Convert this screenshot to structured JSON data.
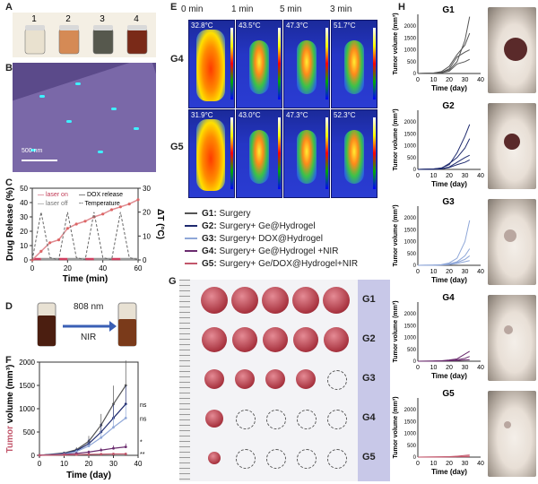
{
  "panels": {
    "A": "A",
    "B": "B",
    "C": "C",
    "D": "D",
    "E": "E",
    "F": "F",
    "G": "G",
    "H": "H"
  },
  "vials": {
    "labels": [
      "1",
      "2",
      "3",
      "4"
    ],
    "colors": [
      "#e9e1cf",
      "#d58a55",
      "#56584d",
      "#7a2a18"
    ]
  },
  "sem": {
    "scalebar": "500 nm"
  },
  "release_chart": {
    "ylabel": "Drug Release (%)",
    "y2label": "ΔT (°C)",
    "xlabel": "Time (min)",
    "legend": [
      "laser on",
      "DOX release",
      "laser off",
      "Temperature"
    ]
  },
  "nir": {
    "wavelength": "808 nm",
    "label": "NIR"
  },
  "thermal": {
    "times": [
      "0 min",
      "1 min",
      "3 min",
      "5 min"
    ],
    "groups": [
      "G4",
      "G5"
    ],
    "temps": [
      [
        "32.8°C",
        "43.5°C",
        "47.3°C",
        "51.7°C"
      ],
      [
        "31.9°C",
        "43.0°C",
        "47.3°C",
        "52.3°C"
      ]
    ]
  },
  "group_legend": [
    {
      "id": "G1:",
      "desc": " Surgery",
      "color": "#555555"
    },
    {
      "id": "G2:",
      "desc": " Surgery+ Ge@Hydrogel",
      "color": "#1e2a6e"
    },
    {
      "id": "G3:",
      "desc": " Surgery+ DOX@Hydrogel",
      "color": "#8fa7d8"
    },
    {
      "id": "G4:",
      "desc": " Surgery+ Ge@Hydrogel +NIR",
      "color": "#6a2b6e"
    },
    {
      "id": "G5:",
      "desc": " Surgery+ Ge/DOX@Hydrogel+NIR",
      "color": "#c2566b"
    }
  ],
  "tumor_photo": {
    "rows": [
      "G1",
      "G2",
      "G3",
      "G4",
      "G5"
    ],
    "counts": [
      5,
      5,
      4,
      1,
      1
    ]
  },
  "tumor_chart": {
    "ylabel_prefix": "Tumor",
    "ylabel_rest": " volume (mm³)",
    "xlabel": "Time (day)",
    "sig": [
      "ns",
      "ns",
      "*",
      "**"
    ]
  },
  "h_charts": {
    "ylabel": "Tumor volume (mm³)",
    "xlabel": "Time (day)",
    "groups": [
      "G1",
      "G2",
      "G3",
      "G4",
      "G5"
    ]
  },
  "chart_data": [
    {
      "type": "line",
      "panel": "C",
      "xlabel": "Time (min)",
      "ylabel": "Drug Release (%)",
      "y2label": "ΔT (°C)",
      "xlim": [
        0,
        60
      ],
      "ylim": [
        0,
        50
      ],
      "y2lim": [
        0,
        30
      ],
      "x": [
        0,
        5,
        10,
        15,
        20,
        25,
        30,
        35,
        40,
        45,
        50,
        55,
        60
      ],
      "series": [
        {
          "name": "DOX release",
          "values": [
            0,
            6,
            12,
            14,
            22,
            25,
            27,
            30,
            32,
            35,
            37,
            39,
            42
          ]
        },
        {
          "name": "Temperature",
          "values": [
            0,
            20,
            1,
            0,
            20,
            1,
            0,
            20,
            1,
            0,
            20,
            1,
            0
          ]
        }
      ]
    },
    {
      "type": "line",
      "panel": "F",
      "xlabel": "Time (day)",
      "ylabel": "Tumor volume (mm³)",
      "xlim": [
        0,
        40
      ],
      "ylim": [
        0,
        2000
      ],
      "x": [
        0,
        10,
        15,
        20,
        25,
        30,
        35
      ],
      "series": [
        {
          "name": "G1",
          "values": [
            0,
            50,
            120,
            300,
            650,
            1100,
            1500
          ]
        },
        {
          "name": "G2",
          "values": [
            0,
            40,
            100,
            250,
            500,
            800,
            1100
          ]
        },
        {
          "name": "G3",
          "values": [
            0,
            30,
            80,
            200,
            380,
            600,
            800
          ]
        },
        {
          "name": "G4",
          "values": [
            0,
            20,
            40,
            70,
            110,
            150,
            180
          ]
        },
        {
          "name": "G5",
          "values": [
            0,
            10,
            15,
            20,
            25,
            30,
            30
          ]
        }
      ]
    },
    {
      "type": "line",
      "panel": "H",
      "xlabel": "Time (day)",
      "ylabel": "Tumor volume (mm³)",
      "xlim": [
        0,
        40
      ],
      "yticks": [
        0,
        500,
        1000,
        1500,
        2000
      ],
      "x": [
        0,
        10,
        15,
        20,
        25,
        30,
        33
      ],
      "groups": [
        {
          "name": "G1",
          "lines": [
            [
              0,
              20,
              50,
              150,
              500,
              1400,
              2400
            ],
            [
              0,
              20,
              80,
              300,
              800,
              1200,
              1700
            ],
            [
              0,
              10,
              40,
              200,
              700,
              900,
              1000
            ],
            [
              0,
              10,
              30,
              100,
              400,
              500,
              600
            ]
          ]
        },
        {
          "name": "G2",
          "lines": [
            [
              0,
              20,
              60,
              200,
              700,
              1400,
              1900
            ],
            [
              0,
              20,
              50,
              250,
              500,
              900,
              1300
            ],
            [
              0,
              10,
              30,
              100,
              300,
              500,
              600
            ],
            [
              0,
              10,
              20,
              80,
              200,
              300,
              400
            ]
          ]
        },
        {
          "name": "G3",
          "lines": [
            [
              0,
              10,
              30,
              100,
              300,
              1000,
              1900
            ],
            [
              0,
              10,
              20,
              60,
              150,
              400,
              700
            ],
            [
              0,
              5,
              20,
              50,
              120,
              250,
              400
            ],
            [
              0,
              5,
              10,
              30,
              80,
              150,
              200
            ]
          ]
        },
        {
          "name": "G4",
          "lines": [
            [
              0,
              10,
              20,
              50,
              100,
              300,
              420
            ],
            [
              0,
              5,
              15,
              30,
              60,
              120,
              200
            ],
            [
              0,
              5,
              10,
              20,
              30,
              50,
              60
            ]
          ]
        },
        {
          "name": "G5",
          "lines": [
            [
              0,
              5,
              10,
              20,
              40,
              70,
              90
            ],
            [
              0,
              5,
              10,
              15,
              20,
              30,
              40
            ],
            [
              0,
              3,
              5,
              8,
              12,
              15,
              20
            ]
          ]
        }
      ]
    }
  ]
}
